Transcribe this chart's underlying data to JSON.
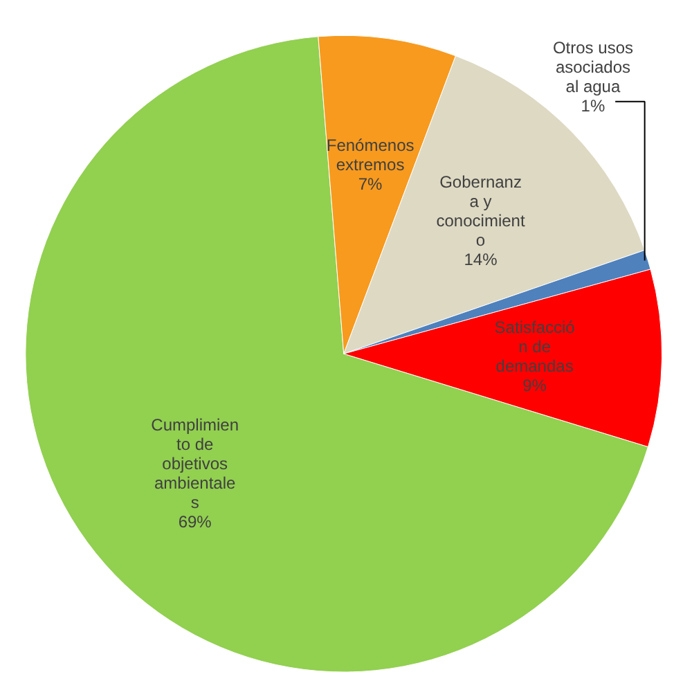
{
  "chart_data": {
    "type": "pie",
    "categories": [
      "Cumplimien\nto de\nobjetivos\nambientale\ns",
      "Fenómenos\nextremos",
      "Gobernanz\na y\nconocimient\no",
      "Otros usos\nasociados\nal agua",
      "Satisfacció\nn de\ndemandas"
    ],
    "values": [
      69,
      7,
      14,
      1,
      9
    ],
    "value_labels": [
      "69%",
      "7%",
      "14%",
      "1%",
      "9%"
    ],
    "colors": [
      "#92d050",
      "#f79a1e",
      "#ddd9c3",
      "#4f81bd",
      "#ff0000"
    ]
  }
}
